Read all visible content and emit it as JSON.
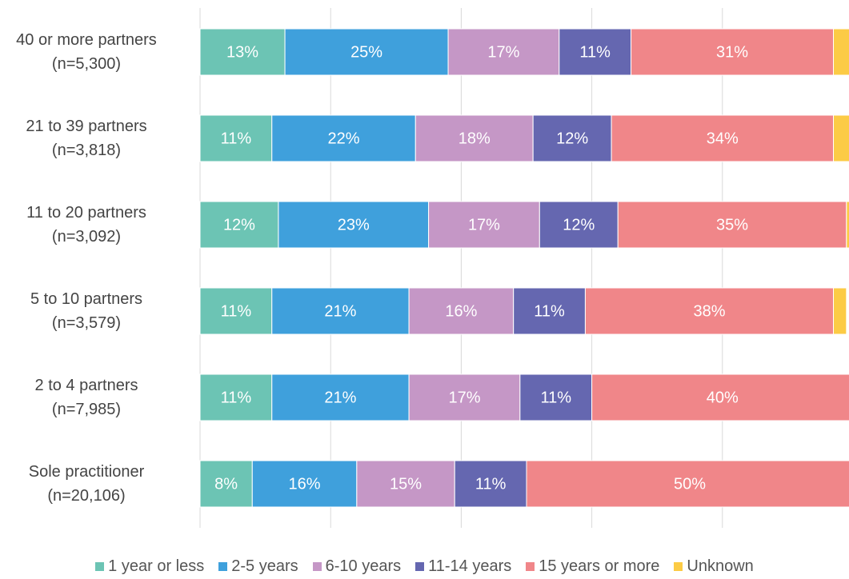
{
  "chart_data": {
    "type": "stacked-bar-horizontal",
    "categories": [
      "40 or more partners\n(n=5,300)",
      "21 to 39 partners\n(n=3,818)",
      "11 to 20 partners\n(n=3,092)",
      "5 to 10 partners\n(n=3,579)",
      "2 to 4 partners\n(n=7,985)",
      "Sole practitioner\n(n=20,106)"
    ],
    "series": [
      {
        "name": "1 year or less",
        "color": "#6cc4b4",
        "values": [
          13,
          11,
          12,
          11,
          11,
          8
        ],
        "value_labels": [
          "13%",
          "11%",
          "12%",
          "11%",
          "11%",
          "8%"
        ]
      },
      {
        "name": "2-5 years",
        "color": "#3fa0dc",
        "values": [
          25,
          22,
          23,
          21,
          21,
          16
        ],
        "value_labels": [
          "25%",
          "22%",
          "23%",
          "21%",
          "21%",
          "16%"
        ]
      },
      {
        "name": "6-10 years",
        "color": "#c597c6",
        "values": [
          17,
          18,
          17,
          16,
          17,
          15
        ],
        "value_labels": [
          "17%",
          "18%",
          "17%",
          "16%",
          "17%",
          "15%"
        ]
      },
      {
        "name": "11-14 years",
        "color": "#6567b0",
        "values": [
          11,
          12,
          12,
          11,
          11,
          11
        ],
        "value_labels": [
          "11%",
          "12%",
          "12%",
          "11%",
          "11%",
          "11%"
        ]
      },
      {
        "name": "15 years or more",
        "color": "#f08689",
        "values": [
          31,
          34,
          35,
          38,
          40,
          50
        ],
        "value_labels": [
          "31%",
          "34%",
          "35%",
          "38%",
          "40%",
          "50%"
        ]
      },
      {
        "name": "Unknown",
        "color": "#fccb45",
        "values": [
          3,
          3,
          1,
          2,
          1,
          1
        ]
      }
    ],
    "xlim": [
      0,
      100
    ],
    "xticks": [
      0,
      20,
      40,
      60,
      80,
      100
    ],
    "grid": true,
    "legend": "bottom"
  }
}
